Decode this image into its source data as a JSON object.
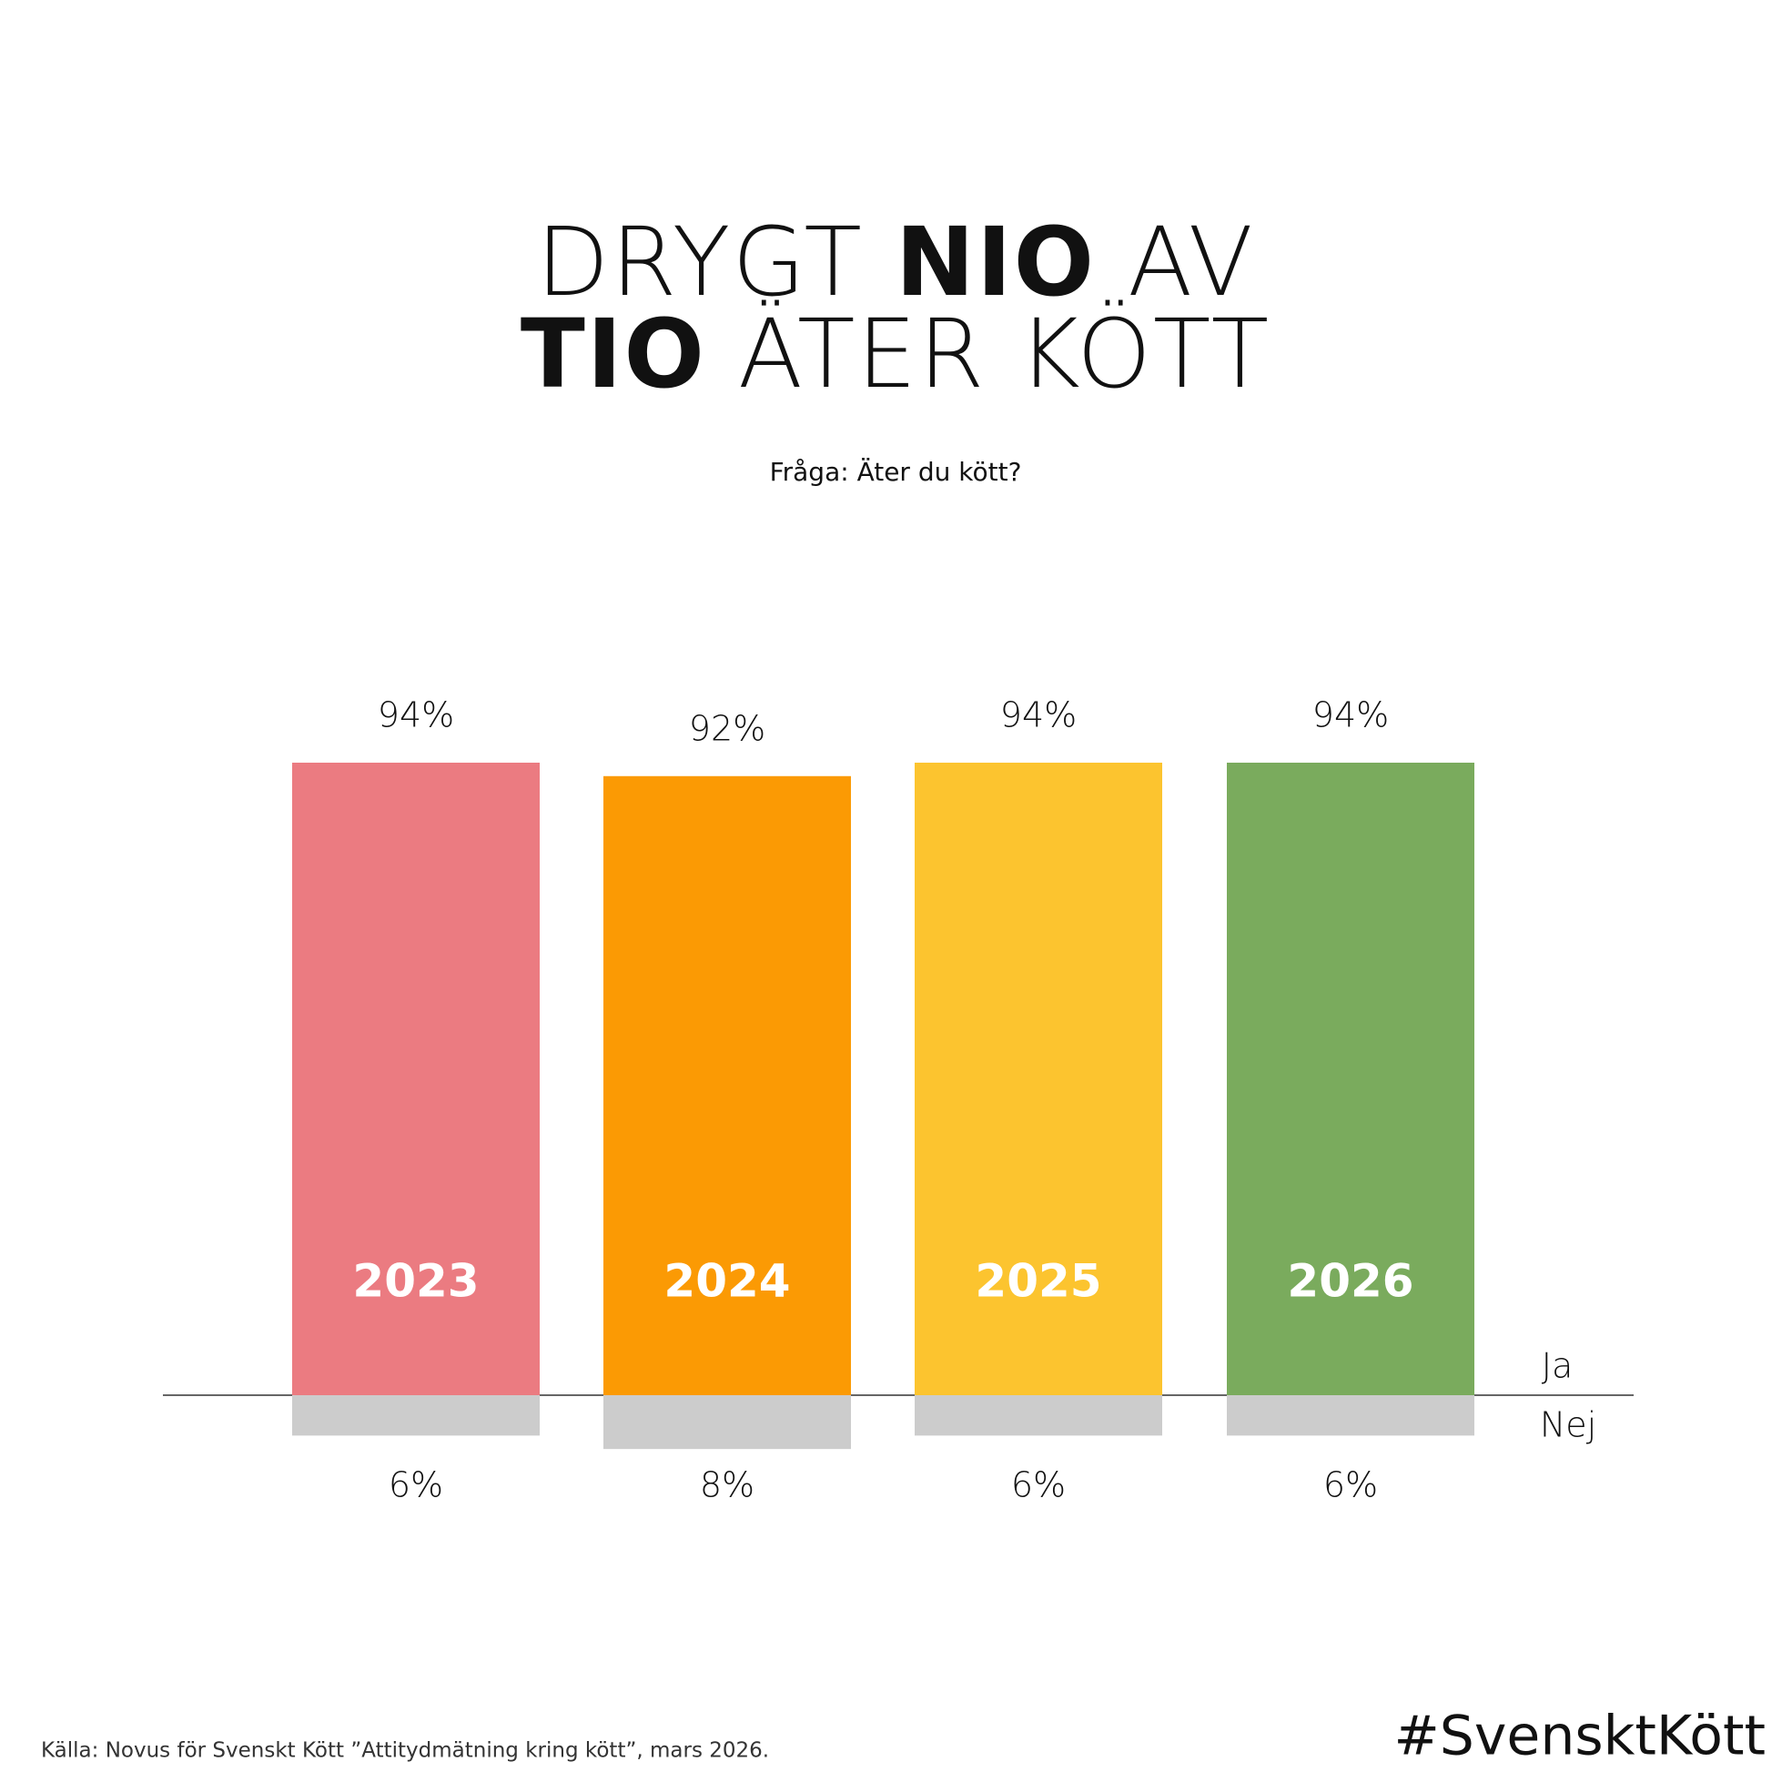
{
  "chart_data": {
    "type": "bar",
    "title_lines": [
      [
        {
          "text": "DRYGT",
          "bold": false
        },
        {
          "text": "NIO",
          "bold": true
        },
        {
          "text": "AV",
          "bold": false
        }
      ],
      [
        {
          "text": "TIO",
          "bold": true
        },
        {
          "text": "ÄTER",
          "bold": false
        },
        {
          "text": "KÖTT",
          "bold": false
        }
      ]
    ],
    "subtitle": "Fråga: Äter du kött?",
    "categories": [
      "2023",
      "2024",
      "2025",
      "2026"
    ],
    "series": [
      {
        "name": "Ja",
        "colors": [
          "#eb7b81",
          "#fb9a04",
          "#fcc42f",
          "#7aab5d"
        ],
        "values": [
          94,
          92,
          94,
          94
        ],
        "value_labels": [
          "94%",
          "92%",
          "94%",
          "94%"
        ]
      },
      {
        "name": "Nej",
        "color": "#cccccc",
        "values": [
          6,
          8,
          6,
          6
        ],
        "value_labels": [
          "6%",
          "8%",
          "6%",
          "6%"
        ]
      }
    ],
    "source": "Källa: Novus för Svenskt Kött ”Attitydmätning kring kött”, mars 2026.",
    "hashtag": "#SvensktKött"
  }
}
